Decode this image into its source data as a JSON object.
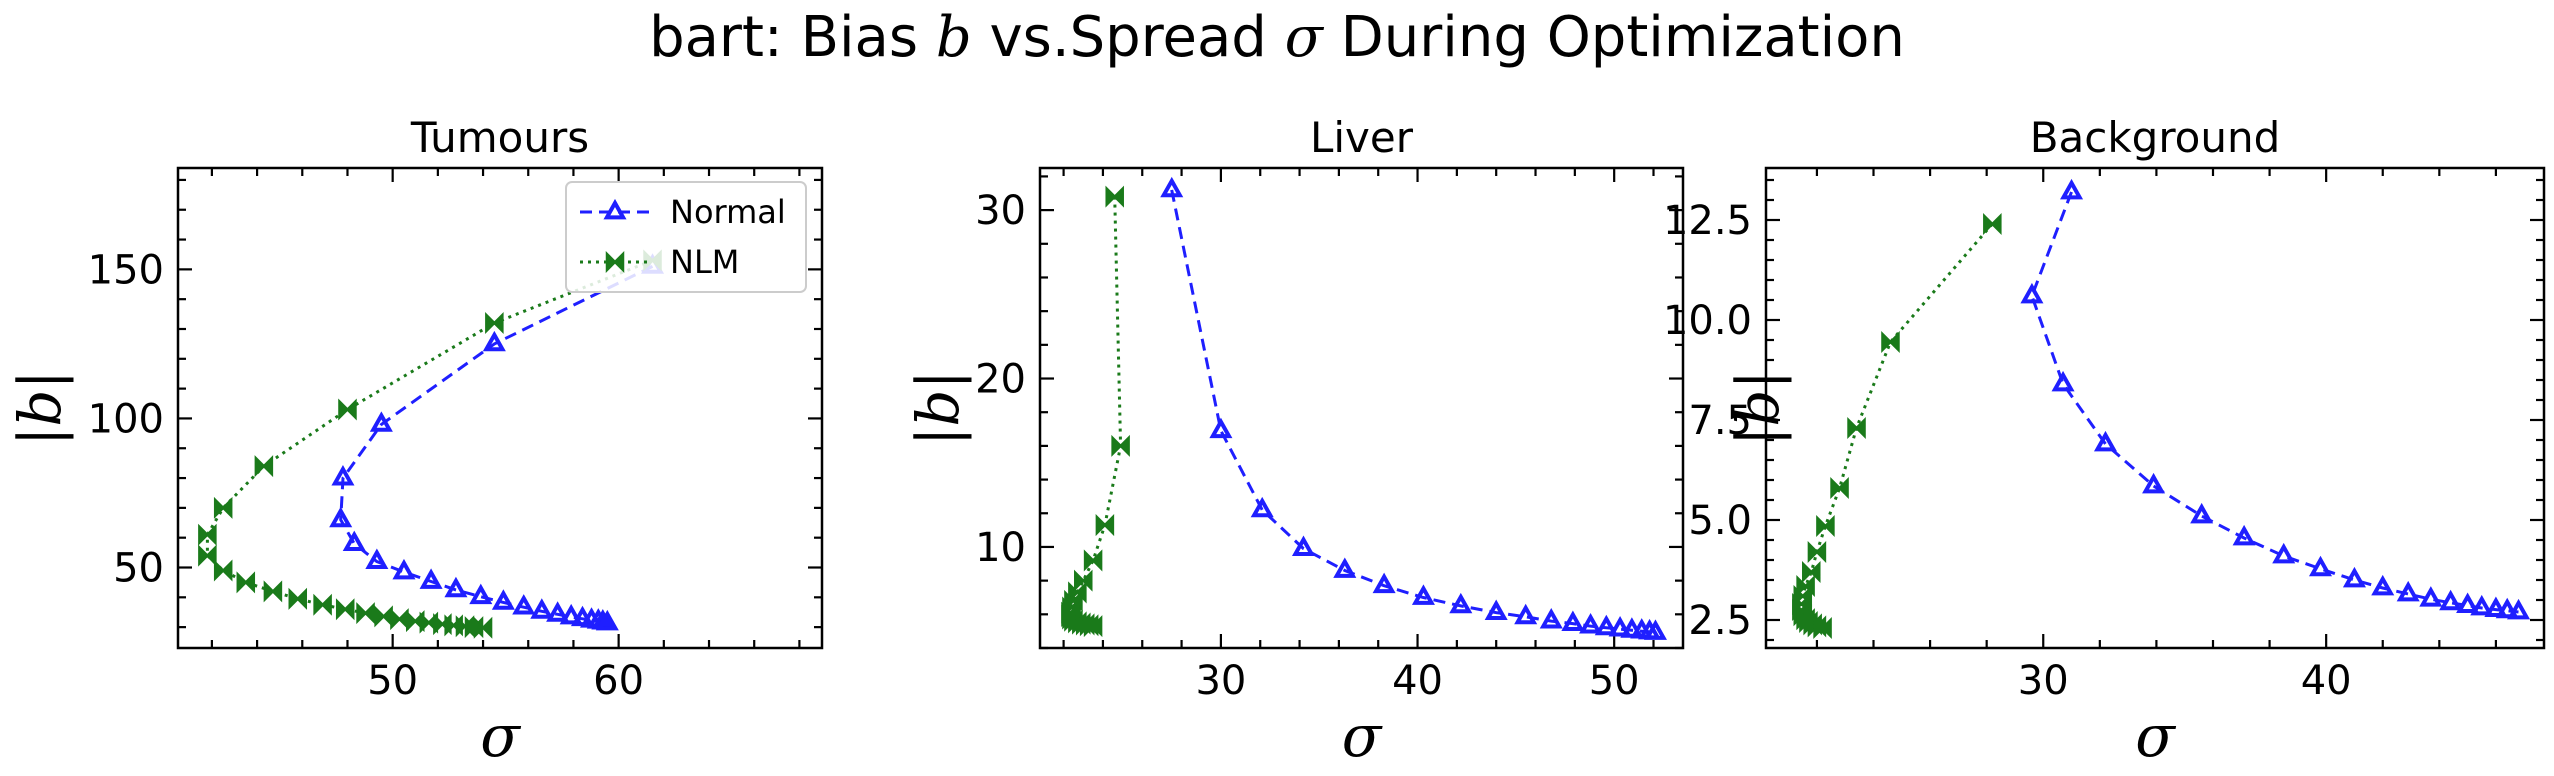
{
  "figure_title": {
    "prefix": "bart: Bias ",
    "b_symbol": "b",
    "middle": " vs.Spread ",
    "sigma_symbol": "σ",
    "suffix": " During Optimization"
  },
  "colors": {
    "normal": "#1f1fff",
    "nlm": "#1a7a1a"
  },
  "legend": {
    "placement": "upper-right (first panel)",
    "normal": "Normal",
    "nlm": "NLM"
  },
  "chart_data": [
    {
      "type": "line",
      "title": "Tumours",
      "xlabel": "σ",
      "ylabel": "|b|",
      "xlim": [
        40.5,
        69
      ],
      "ylim": [
        23,
        184
      ],
      "xticks": [
        50,
        60
      ],
      "yticks": [
        50,
        100,
        150
      ],
      "xminor": 2,
      "yminor": 10,
      "grid": false,
      "legend_loc": "top-right",
      "series": [
        {
          "name": "Normal",
          "style": "dashed",
          "marker": "tri",
          "points": [
            [
              61.5,
              151
            ],
            [
              54.5,
              125
            ],
            [
              49.5,
              98
            ],
            [
              47.8,
              80
            ],
            [
              47.7,
              66
            ],
            [
              48.3,
              58
            ],
            [
              49.3,
              52
            ],
            [
              50.5,
              48.5
            ],
            [
              51.7,
              45.3
            ],
            [
              52.8,
              42.5
            ],
            [
              53.9,
              40.2
            ],
            [
              54.9,
              38.3
            ],
            [
              55.8,
              36.7
            ],
            [
              56.6,
              35.3
            ],
            [
              57.3,
              34.3
            ],
            [
              57.9,
              33.4
            ],
            [
              58.4,
              32.8
            ],
            [
              58.8,
              32.3
            ],
            [
              59.1,
              32
            ],
            [
              59.3,
              31.7
            ],
            [
              59.5,
              31.4
            ]
          ]
        },
        {
          "name": "NLM",
          "style": "dotted",
          "marker": "bowtie",
          "points": [
            [
              61.5,
              153
            ],
            [
              54.5,
              132
            ],
            [
              48,
              103
            ],
            [
              44.3,
              84
            ],
            [
              42.5,
              70
            ],
            [
              41.8,
              61
            ],
            [
              41.8,
              54
            ],
            [
              42.5,
              49
            ],
            [
              43.5,
              45
            ],
            [
              44.7,
              42
            ],
            [
              45.8,
              39.5
            ],
            [
              46.9,
              37.5
            ],
            [
              47.9,
              36
            ],
            [
              48.8,
              34.7
            ],
            [
              49.6,
              33.6
            ],
            [
              50.3,
              32.7
            ],
            [
              51,
              32
            ],
            [
              51.6,
              31.5
            ],
            [
              52.2,
              31
            ],
            [
              52.7,
              30.6
            ],
            [
              53.2,
              30.3
            ],
            [
              53.6,
              30
            ],
            [
              54,
              29.8
            ]
          ]
        }
      ]
    },
    {
      "type": "line",
      "title": "Liver",
      "xlabel": "σ",
      "ylabel": "|b|",
      "xlim": [
        20.8,
        53.5
      ],
      "ylim": [
        4.0,
        32.5
      ],
      "xticks": [
        30,
        40,
        50
      ],
      "yticks": [
        10,
        20,
        30
      ],
      "xminor": 2,
      "yminor": 2,
      "grid": false,
      "series": [
        {
          "name": "Normal",
          "style": "dashed",
          "marker": "tri",
          "points": [
            [
              27.5,
              31.2
            ],
            [
              30,
              16.9
            ],
            [
              32.1,
              12.2
            ],
            [
              34.2,
              9.9
            ],
            [
              36.3,
              8.6
            ],
            [
              38.3,
              7.7
            ],
            [
              40.3,
              7
            ],
            [
              42.2,
              6.5
            ],
            [
              44,
              6.1
            ],
            [
              45.5,
              5.85
            ],
            [
              46.8,
              5.6
            ],
            [
              47.9,
              5.45
            ],
            [
              48.8,
              5.3
            ],
            [
              49.6,
              5.2
            ],
            [
              50.3,
              5.12
            ],
            [
              50.9,
              5.05
            ],
            [
              51.4,
              5.0
            ],
            [
              51.8,
              4.95
            ],
            [
              52.1,
              4.92
            ]
          ]
        },
        {
          "name": "NLM",
          "style": "dotted",
          "marker": "bowtie",
          "points": [
            [
              24.6,
              30.8
            ],
            [
              24.9,
              16
            ],
            [
              24.1,
              11.3
            ],
            [
              23.5,
              9.2
            ],
            [
              23.0,
              8.0
            ],
            [
              22.7,
              7.3
            ],
            [
              22.5,
              6.8
            ],
            [
              22.4,
              6.4
            ],
            [
              22.35,
              6.1
            ],
            [
              22.35,
              5.9
            ],
            [
              22.4,
              5.75
            ],
            [
              22.5,
              5.62
            ],
            [
              22.7,
              5.52
            ],
            [
              22.9,
              5.45
            ],
            [
              23.1,
              5.4
            ],
            [
              23.3,
              5.35
            ],
            [
              23.5,
              5.3
            ]
          ]
        }
      ]
    },
    {
      "type": "line",
      "title": "Background",
      "xlabel": "σ",
      "ylabel": "|b|",
      "xlim": [
        20.2,
        47.7
      ],
      "ylim": [
        1.8,
        13.8
      ],
      "xticks": [
        30,
        40
      ],
      "yticks": [
        2.5,
        5.0,
        7.5,
        10.0,
        12.5
      ],
      "xminor": 2,
      "yminor": 0.5,
      "grid": false,
      "series": [
        {
          "name": "Normal",
          "style": "dashed",
          "marker": "tri",
          "points": [
            [
              31,
              13.2
            ],
            [
              29.6,
              10.6
            ],
            [
              30.7,
              8.4
            ],
            [
              32.2,
              6.9
            ],
            [
              33.9,
              5.85
            ],
            [
              35.6,
              5.1
            ],
            [
              37.1,
              4.55
            ],
            [
              38.5,
              4.1
            ],
            [
              39.8,
              3.78
            ],
            [
              41,
              3.5
            ],
            [
              42,
              3.3
            ],
            [
              42.9,
              3.15
            ],
            [
              43.7,
              3.02
            ],
            [
              44.4,
              2.93
            ],
            [
              45,
              2.86
            ],
            [
              45.5,
              2.8
            ],
            [
              46,
              2.76
            ],
            [
              46.4,
              2.73
            ],
            [
              46.8,
              2.7
            ]
          ]
        },
        {
          "name": "NLM",
          "style": "dotted",
          "marker": "bowtie",
          "points": [
            [
              28.2,
              12.4
            ],
            [
              24.6,
              9.45
            ],
            [
              23.4,
              7.3
            ],
            [
              22.8,
              5.8
            ],
            [
              22.3,
              4.85
            ],
            [
              22,
              4.2
            ],
            [
              21.8,
              3.7
            ],
            [
              21.6,
              3.35
            ],
            [
              21.5,
              3.1
            ],
            [
              21.45,
              2.9
            ],
            [
              21.45,
              2.75
            ],
            [
              21.5,
              2.62
            ],
            [
              21.6,
              2.52
            ],
            [
              21.7,
              2.45
            ],
            [
              21.85,
              2.39
            ],
            [
              22,
              2.34
            ],
            [
              22.2,
              2.3
            ]
          ]
        }
      ]
    }
  ]
}
